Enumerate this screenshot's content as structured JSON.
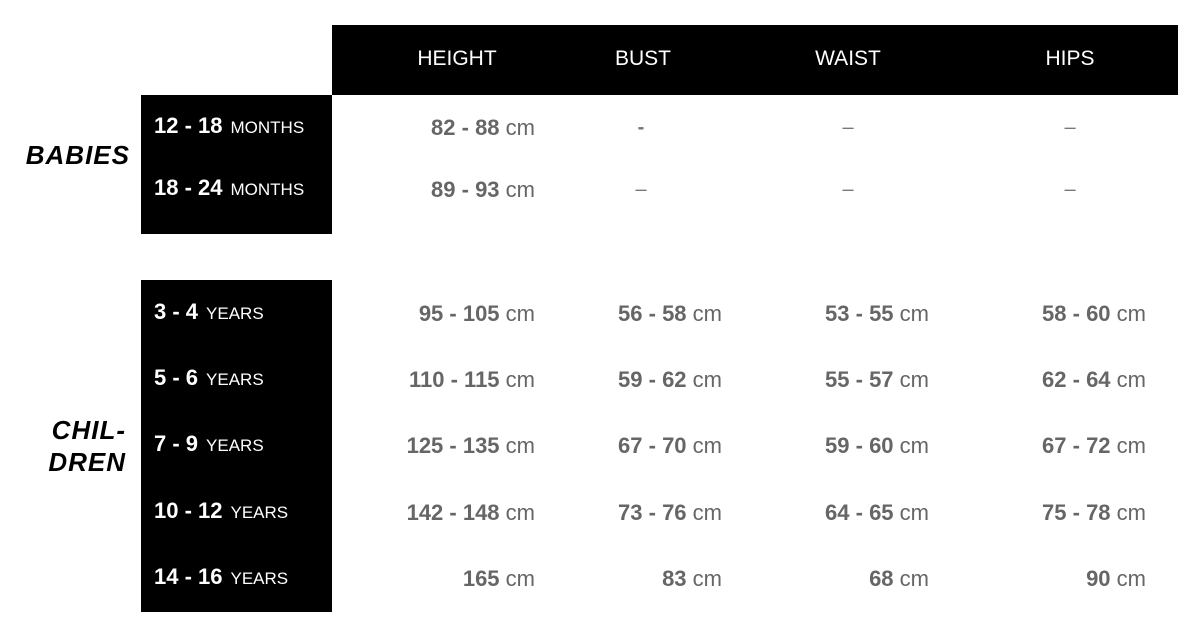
{
  "columns": [
    "HEIGHT",
    "BUST",
    "WAIST",
    "HIPS"
  ],
  "unit": "cm",
  "groups": [
    {
      "label": "BABIES",
      "rows": [
        {
          "range": "12 - 18",
          "period": "MONTHS",
          "values": [
            "82 - 88",
            "-",
            "–",
            "–"
          ]
        },
        {
          "range": "18 - 24",
          "period": "MONTHS",
          "values": [
            "89 - 93",
            "–",
            "–",
            "–"
          ]
        }
      ]
    },
    {
      "label_line1": "CHIL-",
      "label_line2": "DREN",
      "rows": [
        {
          "range": "3 - 4",
          "period": "YEARS",
          "values": [
            "95 - 105",
            "56 - 58",
            "53 - 55",
            "58 - 60"
          ]
        },
        {
          "range": "5 - 6",
          "period": "YEARS",
          "values": [
            "110 - 115",
            "59 - 62",
            "55 - 57",
            "62 - 64"
          ]
        },
        {
          "range": "7 - 9",
          "period": "YEARS",
          "values": [
            "125 - 135",
            "67 - 70",
            "59 - 60",
            "67 - 72"
          ]
        },
        {
          "range": "10 - 12",
          "period": "YEARS",
          "values": [
            "142 - 148",
            "73 - 76",
            "64 - 65",
            "75 - 78"
          ]
        },
        {
          "range": "14 - 16",
          "period": "YEARS",
          "values": [
            "165",
            "83",
            "68",
            "90"
          ]
        }
      ]
    }
  ]
}
